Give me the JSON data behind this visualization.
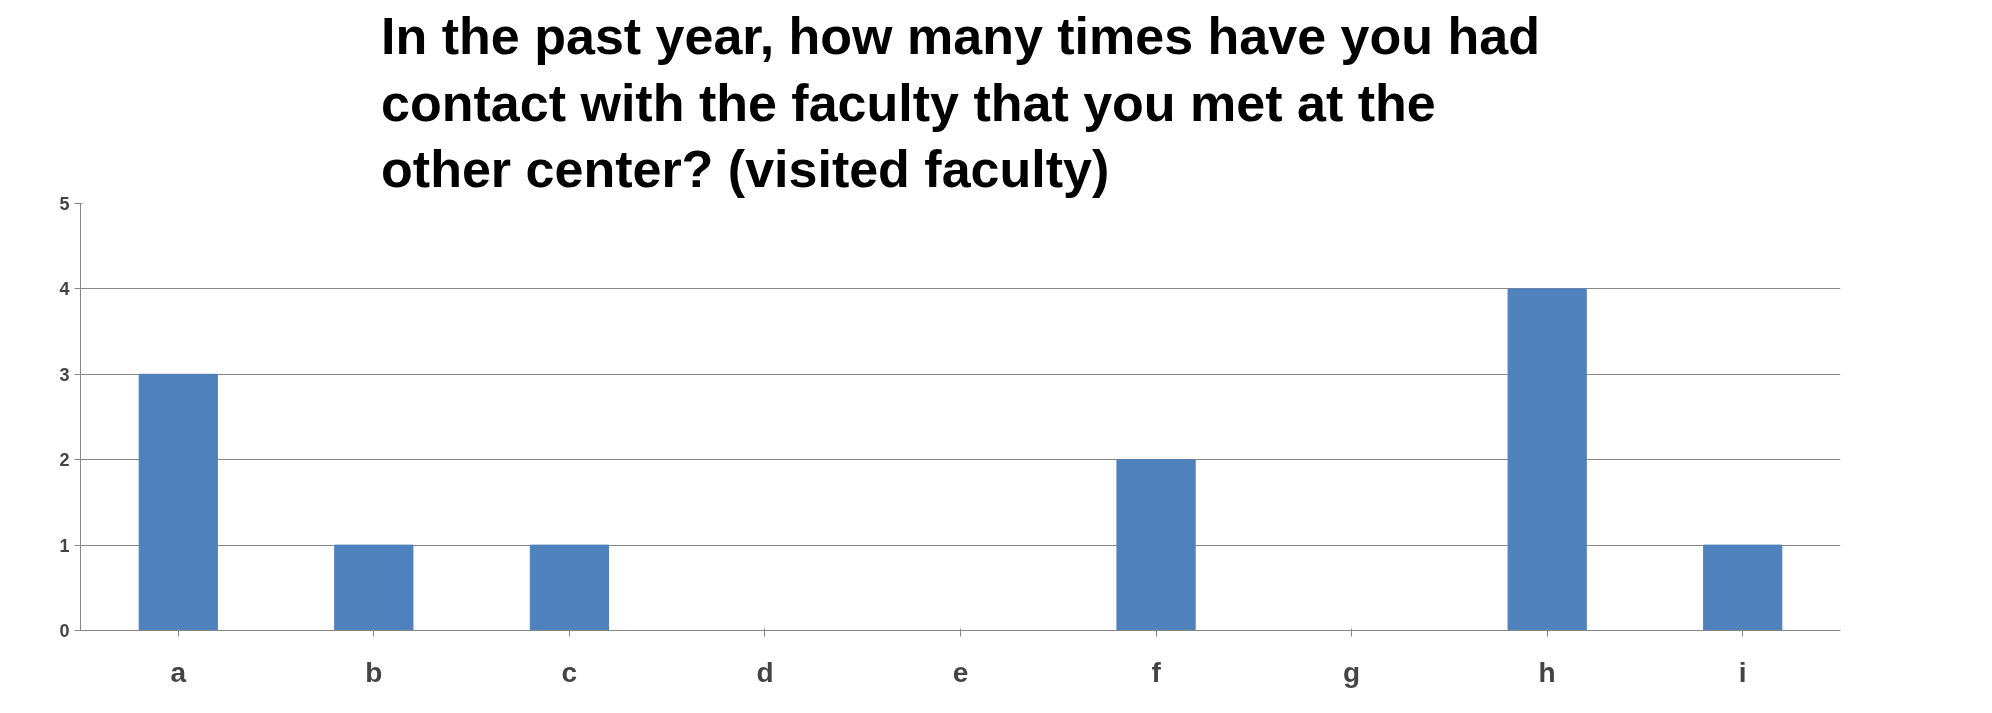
{
  "chart_data": {
    "type": "bar",
    "title": "In the past year, how many times have you had contact with the faculty that you met at the other center? (visited faculty)",
    "categories": [
      "a",
      "b",
      "c",
      "d",
      "e",
      "f",
      "g",
      "h",
      "i"
    ],
    "values": [
      3,
      1,
      1,
      0,
      0,
      2,
      0,
      4,
      1
    ],
    "color": "#4f81bd",
    "ylim": [
      0,
      5
    ],
    "yticks": [
      0,
      1,
      2,
      3,
      4,
      5
    ],
    "grid": "y"
  }
}
